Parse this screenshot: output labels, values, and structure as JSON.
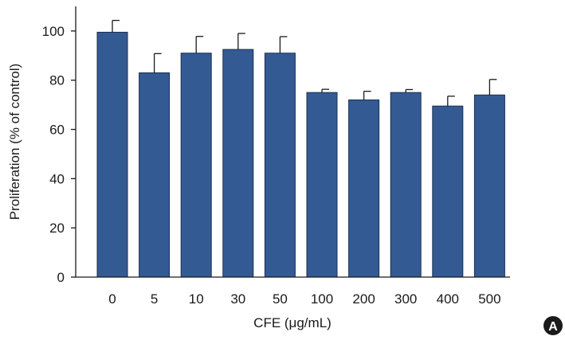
{
  "chart_data": {
    "type": "bar",
    "title": "",
    "xlabel": "CFE (μg/mL)",
    "ylabel": "Proliferation (% of control)",
    "categories": [
      "0",
      "5",
      "10",
      "30",
      "50",
      "100",
      "200",
      "300",
      "400",
      "500"
    ],
    "values": [
      99.5,
      83,
      91,
      92.5,
      91,
      75,
      72,
      75,
      69.5,
      74
    ],
    "error": [
      4.8,
      7.8,
      6.8,
      6.5,
      6.7,
      1.3,
      3.5,
      1.2,
      4.0,
      6.3
    ],
    "ylim": [
      0,
      110
    ],
    "yticks": [
      "0",
      "20",
      "40",
      "60",
      "80",
      "100"
    ],
    "grid": false,
    "bar_color": "#335a93"
  },
  "panel_label": "A"
}
